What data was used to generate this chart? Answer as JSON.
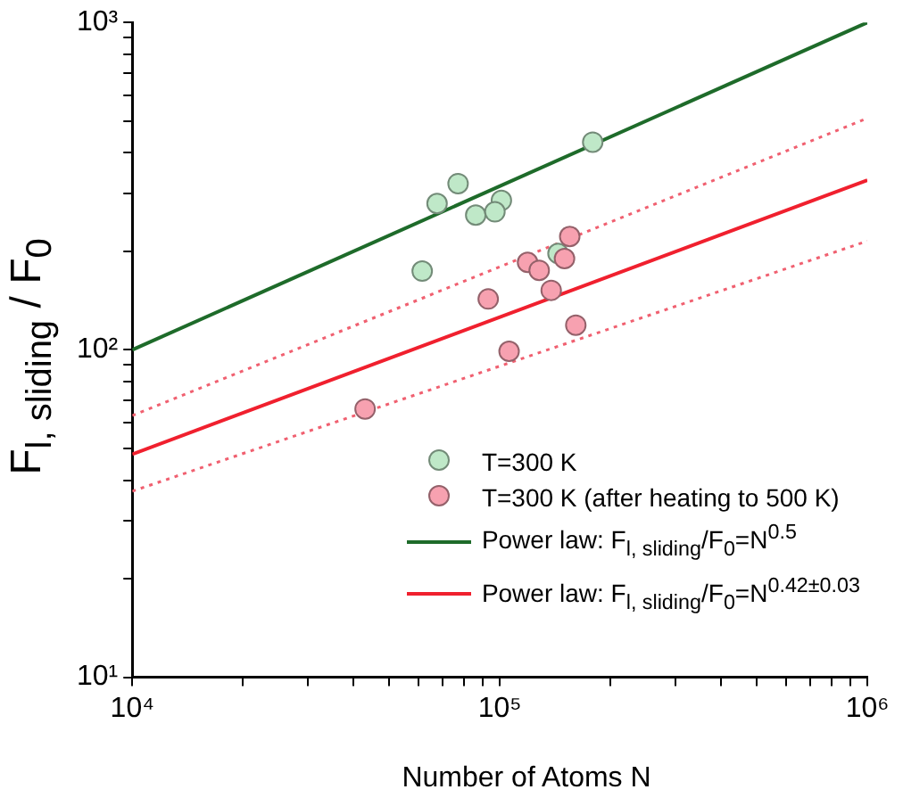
{
  "chart_data": {
    "type": "scatter",
    "xlabel": "Number of Atoms N",
    "ylabel": "F$_{l, sliding}$ / F$_{0}$",
    "log": "xy",
    "grid": false,
    "legend": "bottom right",
    "xlim": [
      10000,
      1000000
    ],
    "ylim": [
      10,
      1000
    ],
    "xticks": [
      {
        "value": 10000,
        "label": "10⁴"
      },
      {
        "value": 20000,
        "label": null
      },
      {
        "value": 30000,
        "label": null
      },
      {
        "value": 40000,
        "label": null
      },
      {
        "value": 50000,
        "label": null
      },
      {
        "value": 60000,
        "label": null
      },
      {
        "value": 70000,
        "label": null
      },
      {
        "value": 80000,
        "label": null
      },
      {
        "value": 90000,
        "label": null
      },
      {
        "value": 100000,
        "label": "10⁵"
      },
      {
        "value": 200000,
        "label": null
      },
      {
        "value": 300000,
        "label": null
      },
      {
        "value": 400000,
        "label": null
      },
      {
        "value": 500000,
        "label": null
      },
      {
        "value": 600000,
        "label": null
      },
      {
        "value": 700000,
        "label": null
      },
      {
        "value": 800000,
        "label": null
      },
      {
        "value": 900000,
        "label": null
      },
      {
        "value": 1000000,
        "label": "10⁶"
      }
    ],
    "yticks": [
      {
        "value": 10,
        "label": "10¹"
      },
      {
        "value": 20,
        "label": null
      },
      {
        "value": 30,
        "label": null
      },
      {
        "value": 40,
        "label": null
      },
      {
        "value": 50,
        "label": null
      },
      {
        "value": 60,
        "label": null
      },
      {
        "value": 70,
        "label": null
      },
      {
        "value": 80,
        "label": null
      },
      {
        "value": 90,
        "label": null
      },
      {
        "value": 100,
        "label": "10²"
      },
      {
        "value": 200,
        "label": null
      },
      {
        "value": 300,
        "label": null
      },
      {
        "value": 400,
        "label": null
      },
      {
        "value": 500,
        "label": null
      },
      {
        "value": 600,
        "label": null
      },
      {
        "value": 700,
        "label": null
      },
      {
        "value": 800,
        "label": null
      },
      {
        "value": 900,
        "label": null
      },
      {
        "value": 1000,
        "label": "10³"
      }
    ],
    "series": [
      {
        "name": "T=300 K",
        "marker": "circle",
        "color": "#bfe8c8",
        "x": [
          179000,
          77000,
          67500,
          101000,
          86000,
          97000,
          144000,
          61500
        ],
        "values": [
          431,
          322,
          280,
          286,
          258,
          264,
          197,
          174
        ]
      },
      {
        "name": "T=300 K (after heating to 500 K)",
        "marker": "circle",
        "color": "#f7a1b0",
        "x": [
          155000,
          119000,
          128000,
          150000,
          93000,
          138000,
          161000,
          106000,
          43000
        ],
        "values": [
          222,
          185,
          175,
          190,
          143,
          152,
          119,
          99,
          66
        ]
      },
      {
        "name": "Power law: F$_{l, sliding}$/F$_{0}$=N$^{0.5}$",
        "type": "line",
        "marker": "none",
        "color": "#1e6b2a",
        "line_style": "solid",
        "x": [
          10000,
          1000000
        ],
        "values": [
          100,
          1000
        ]
      },
      {
        "name": "Power law: F$_{l, sliding}$/F$_{0}$=N$^{0.42±0.03}$",
        "type": "line",
        "marker": "none",
        "color": "#f0202e",
        "line_style": "solid",
        "x": [
          10000,
          1000000
        ],
        "values": [
          48,
          330
        ]
      },
      {
        "type": "line",
        "marker": "none",
        "color": "#f06070",
        "line_style": "dotted",
        "x": [
          10000,
          1000000
        ],
        "values": [
          63,
          510
        ]
      },
      {
        "type": "line",
        "marker": "none",
        "color": "#f06070",
        "line_style": "dotted",
        "x": [
          10000,
          1000000
        ],
        "values": [
          37,
          215
        ]
      }
    ]
  }
}
